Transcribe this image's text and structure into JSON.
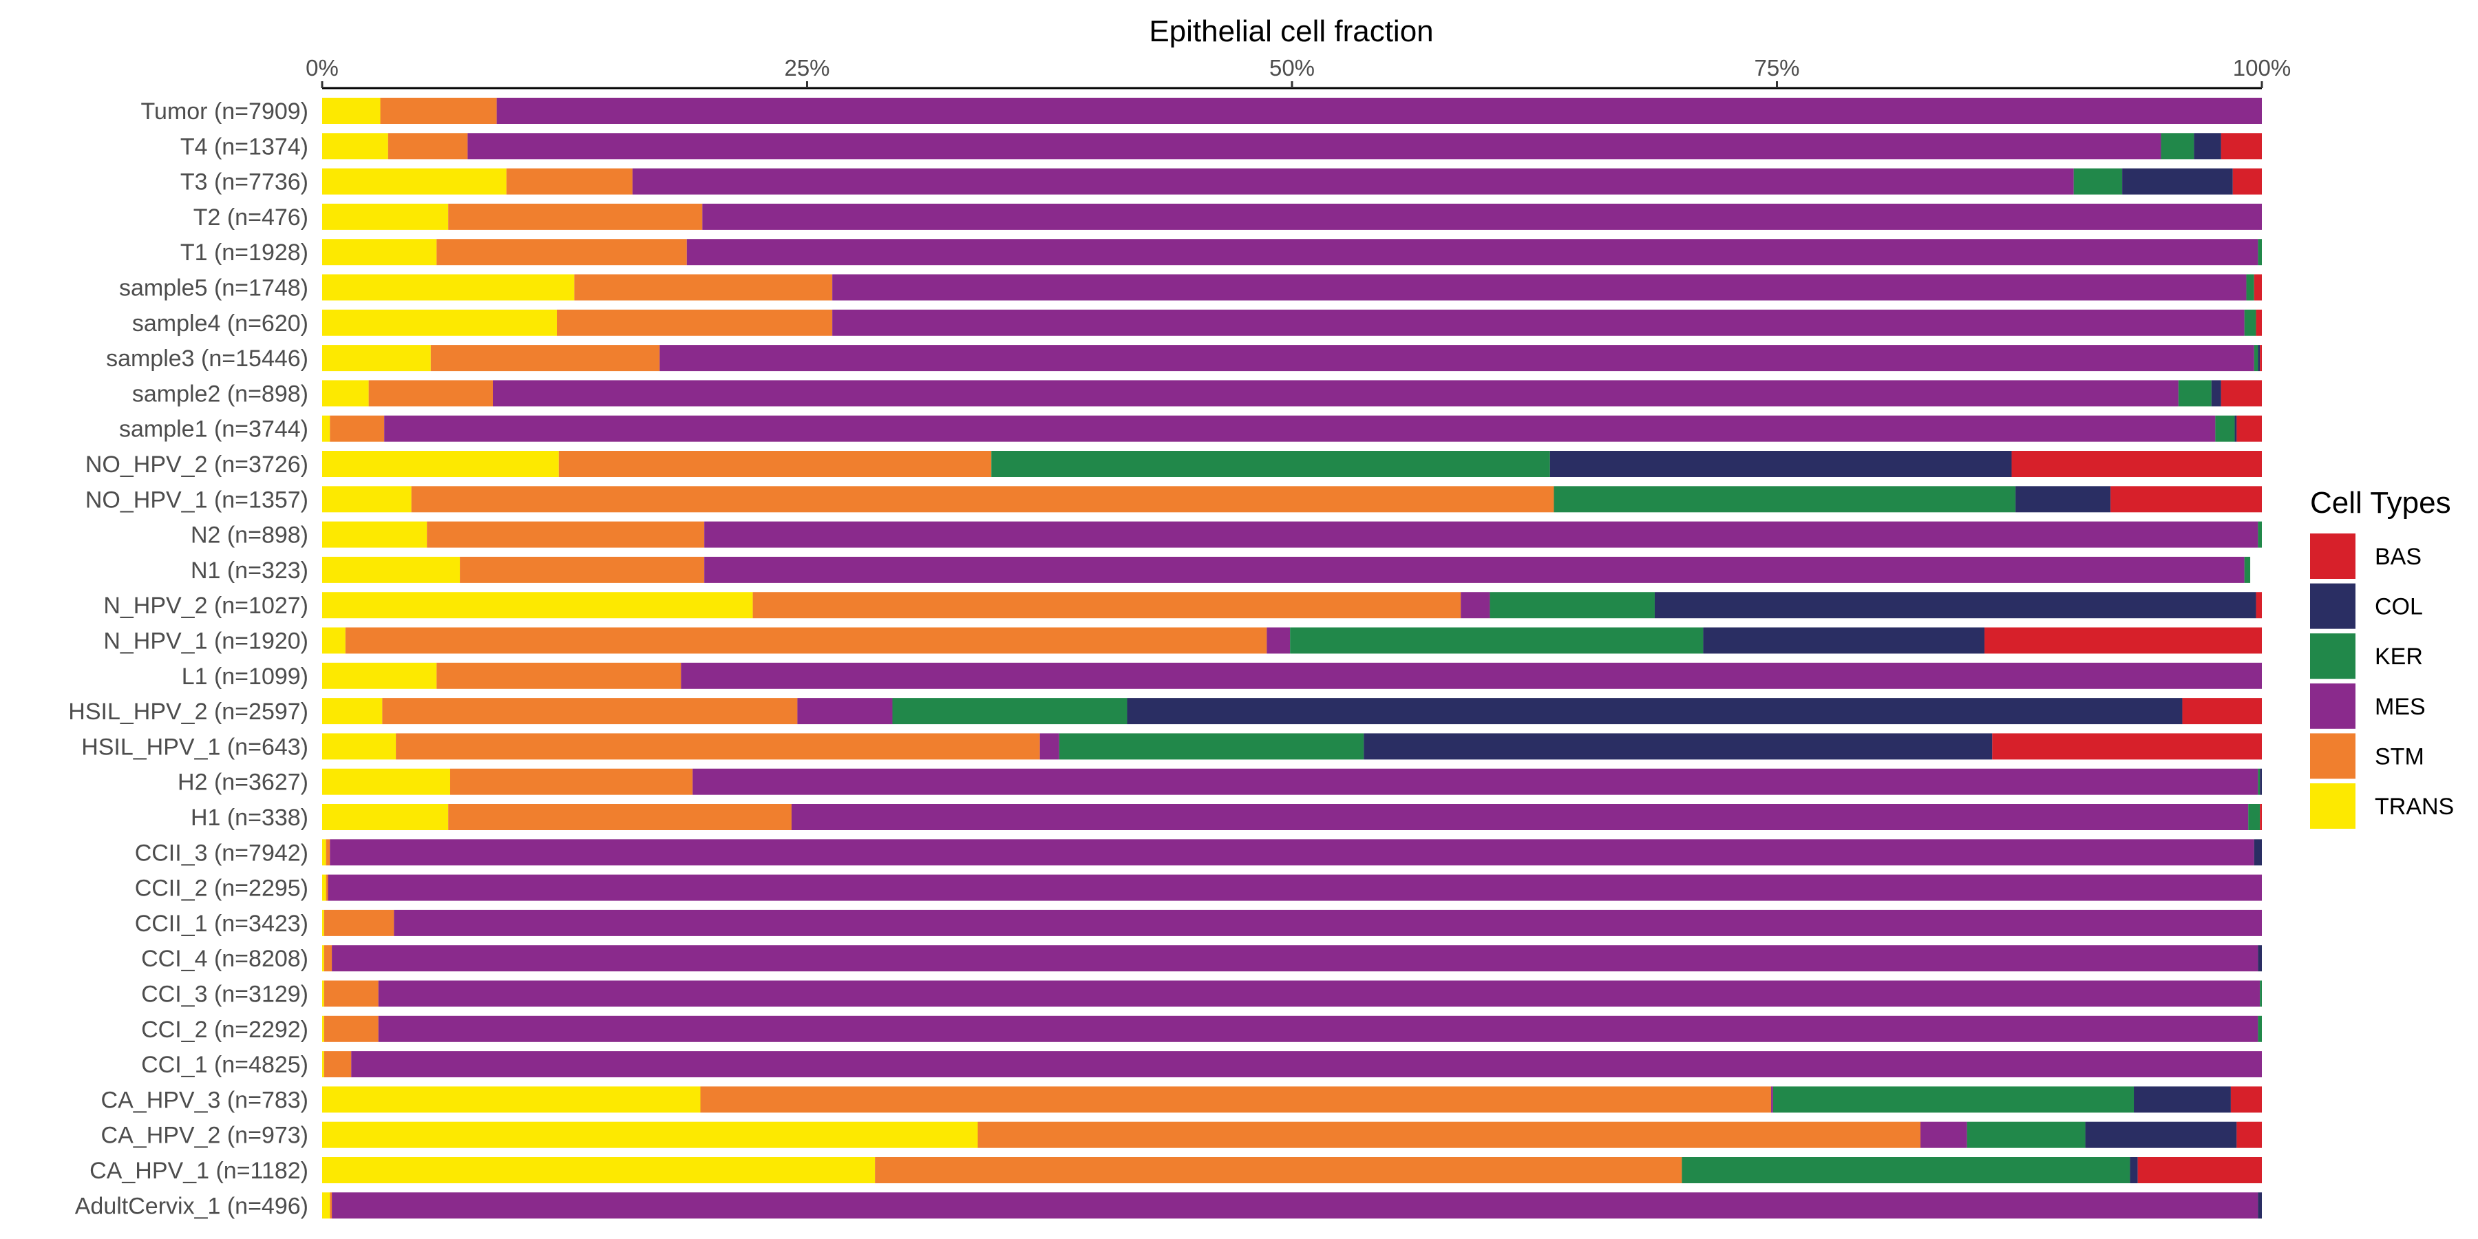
{
  "chart_data": {
    "type": "bar",
    "orientation": "horizontal",
    "stacked": true,
    "title": "Epithelial cell fraction",
    "xlabel": "Epithelial cell fraction",
    "ylabel": "",
    "xlim": [
      0,
      100
    ],
    "x_ticks": [
      "0%",
      "25%",
      "50%",
      "75%",
      "100%"
    ],
    "x_tick_values": [
      0,
      25,
      50,
      75,
      100
    ],
    "legend_title": "Cell Types",
    "legend_position": "right",
    "legend": [
      {
        "name": "BAS",
        "color": "#d7202a"
      },
      {
        "name": "COL",
        "color": "#2a2e63"
      },
      {
        "name": "KER",
        "color": "#21884a"
      },
      {
        "name": "MES",
        "color": "#8a2a8c"
      },
      {
        "name": "STM",
        "color": "#f07f2e"
      },
      {
        "name": "TRANS",
        "color": "#fde900"
      }
    ],
    "stack_order": [
      "TRANS",
      "STM",
      "MES",
      "KER",
      "COL",
      "BAS"
    ],
    "categories": [
      "Tumor (n=7909)",
      "T4 (n=1374)",
      "T3 (n=7736)",
      "T2 (n=476)",
      "T1 (n=1928)",
      "sample5 (n=1748)",
      "sample4 (n=620)",
      "sample3 (n=15446)",
      "sample2 (n=898)",
      "sample1 (n=3744)",
      "NO_HPV_2 (n=3726)",
      "NO_HPV_1 (n=1357)",
      "N2 (n=898)",
      "N1 (n=323)",
      "N_HPV_2 (n=1027)",
      "N_HPV_1 (n=1920)",
      "L1 (n=1099)",
      "HSIL_HPV_2 (n=2597)",
      "HSIL_HPV_1 (n=643)",
      "H2 (n=3627)",
      "H1 (n=338)",
      "CCII_3 (n=7942)",
      "CCII_2 (n=2295)",
      "CCII_1 (n=3423)",
      "CCI_4 (n=8208)",
      "CCI_3 (n=3129)",
      "CCI_2 (n=2292)",
      "CCI_1 (n=4825)",
      "CA_HPV_3 (n=783)",
      "CA_HPV_2 (n=973)",
      "CA_HPV_1 (n=1182)",
      "AdultCervix_1 (n=496)"
    ],
    "series": [
      {
        "name": "TRANS",
        "values": [
          3.0,
          3.4,
          9.5,
          6.5,
          5.9,
          13.0,
          12.1,
          5.6,
          2.4,
          0.4,
          12.2,
          4.6,
          5.4,
          7.1,
          22.2,
          1.2,
          5.9,
          3.1,
          3.8,
          6.6,
          6.5,
          0.2,
          0.2,
          0.1,
          0.1,
          0.1,
          0.1,
          0.1,
          19.5,
          33.8,
          28.5,
          0.4
        ]
      },
      {
        "name": "STM",
        "values": [
          6.0,
          4.1,
          6.5,
          13.1,
          12.9,
          13.3,
          14.2,
          11.8,
          6.4,
          2.8,
          22.3,
          58.9,
          14.3,
          12.6,
          36.5,
          47.5,
          12.6,
          21.4,
          33.2,
          12.5,
          17.7,
          0.2,
          0.1,
          3.6,
          0.4,
          2.8,
          2.8,
          1.4,
          55.2,
          48.6,
          41.6,
          0.1
        ]
      },
      {
        "name": "MES",
        "values": [
          91.0,
          87.3,
          74.3,
          80.4,
          81.0,
          72.9,
          72.8,
          82.2,
          86.9,
          94.4,
          0.0,
          0.0,
          80.1,
          79.4,
          1.5,
          1.2,
          81.5,
          4.9,
          1.0,
          80.7,
          75.1,
          99.2,
          99.7,
          96.3,
          99.3,
          97.0,
          96.9,
          98.5,
          0.1,
          2.4,
          0.0,
          99.3
        ]
      },
      {
        "name": "KER",
        "values": [
          0.0,
          1.7,
          2.5,
          0.0,
          0.2,
          0.4,
          0.6,
          0.2,
          1.7,
          1.0,
          28.8,
          23.8,
          0.2,
          0.3,
          8.5,
          21.3,
          0.0,
          12.1,
          15.7,
          0.1,
          0.6,
          0.0,
          0.0,
          0.0,
          0.0,
          0.1,
          0.2,
          0.0,
          18.6,
          6.1,
          23.1,
          0.0
        ]
      },
      {
        "name": "COL",
        "values": [
          0.0,
          1.4,
          5.7,
          0.0,
          0.0,
          0.0,
          0.0,
          0.1,
          0.5,
          0.1,
          23.8,
          4.9,
          0.0,
          0.0,
          31.0,
          14.5,
          0.0,
          54.4,
          32.4,
          0.1,
          0.0,
          0.4,
          0.0,
          0.0,
          0.2,
          0.0,
          0.0,
          0.0,
          5.0,
          7.8,
          0.4,
          0.2
        ]
      },
      {
        "name": "BAS",
        "values": [
          0.0,
          2.1,
          1.5,
          0.0,
          0.0,
          0.4,
          0.3,
          0.1,
          2.1,
          1.3,
          12.9,
          7.8,
          0.0,
          0.0,
          0.3,
          14.3,
          0.0,
          4.1,
          13.9,
          0.0,
          0.1,
          0.0,
          0.0,
          0.0,
          0.0,
          0.0,
          0.0,
          0.0,
          1.6,
          1.3,
          6.4,
          0.0
        ]
      }
    ]
  }
}
